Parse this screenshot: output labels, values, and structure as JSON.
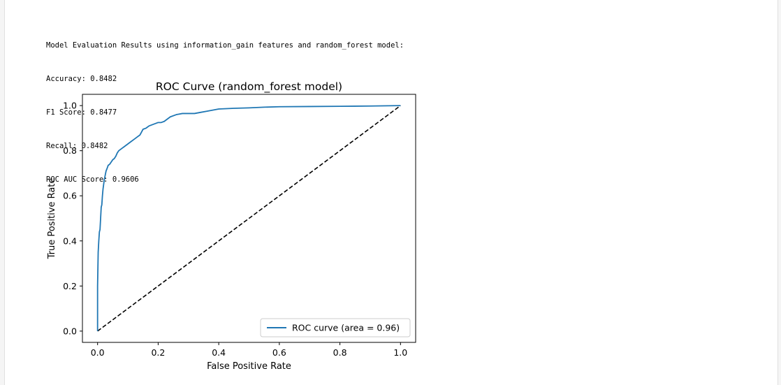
{
  "output": {
    "lines": [
      "Model Evaluation Results using information_gain features and random_forest model:",
      "Accuracy: 0.8482",
      "F1 Score: 0.8477",
      "Recall: 0.8482",
      "ROC AUC Score: 0.9606"
    ]
  },
  "colors": {
    "roc": "#1f77b4",
    "diagonal": "#000000",
    "axes": "#000000"
  },
  "chart_data": {
    "type": "line",
    "title": "ROC Curve (random_forest model)",
    "xlabel": "False Positive Rate",
    "ylabel": "True Positive Rate",
    "xlim": [
      -0.05,
      1.05
    ],
    "ylim": [
      -0.05,
      1.05
    ],
    "xticks": [
      0.0,
      0.2,
      0.4,
      0.6,
      0.8,
      1.0
    ],
    "yticks": [
      0.0,
      0.2,
      0.4,
      0.6,
      0.8,
      1.0
    ],
    "xtick_labels": [
      "0.0",
      "0.2",
      "0.4",
      "0.6",
      "0.8",
      "1.0"
    ],
    "ytick_labels": [
      "0.0",
      "0.2",
      "0.4",
      "0.6",
      "0.8",
      "1.0"
    ],
    "grid": false,
    "legend_position": "lower right",
    "series": [
      {
        "name": "ROC curve (area = 0.96)",
        "style": "solid",
        "x": [
          0.0,
          0.0,
          0.002,
          0.004,
          0.006,
          0.008,
          0.01,
          0.012,
          0.014,
          0.016,
          0.018,
          0.02,
          0.022,
          0.025,
          0.028,
          0.031,
          0.035,
          0.04,
          0.045,
          0.05,
          0.055,
          0.06,
          0.065,
          0.07,
          0.08,
          0.09,
          0.1,
          0.11,
          0.12,
          0.13,
          0.14,
          0.15,
          0.16,
          0.17,
          0.18,
          0.19,
          0.2,
          0.21,
          0.22,
          0.23,
          0.24,
          0.26,
          0.28,
          0.3,
          0.32,
          0.34,
          0.36,
          0.38,
          0.4,
          0.45,
          0.5,
          0.55,
          0.6,
          0.7,
          0.8,
          0.9,
          1.0
        ],
        "y": [
          0.0,
          0.2,
          0.35,
          0.4,
          0.44,
          0.45,
          0.5,
          0.55,
          0.56,
          0.6,
          0.63,
          0.65,
          0.67,
          0.69,
          0.71,
          0.72,
          0.735,
          0.74,
          0.75,
          0.76,
          0.765,
          0.775,
          0.79,
          0.8,
          0.81,
          0.82,
          0.83,
          0.84,
          0.85,
          0.86,
          0.87,
          0.895,
          0.9,
          0.91,
          0.915,
          0.92,
          0.925,
          0.925,
          0.93,
          0.94,
          0.95,
          0.96,
          0.965,
          0.965,
          0.965,
          0.97,
          0.975,
          0.98,
          0.985,
          0.988,
          0.99,
          0.993,
          0.995,
          0.996,
          0.997,
          0.998,
          1.0
        ]
      },
      {
        "style": "dashed",
        "x": [
          0.0,
          1.0
        ],
        "y": [
          0.0,
          1.0
        ]
      }
    ]
  }
}
